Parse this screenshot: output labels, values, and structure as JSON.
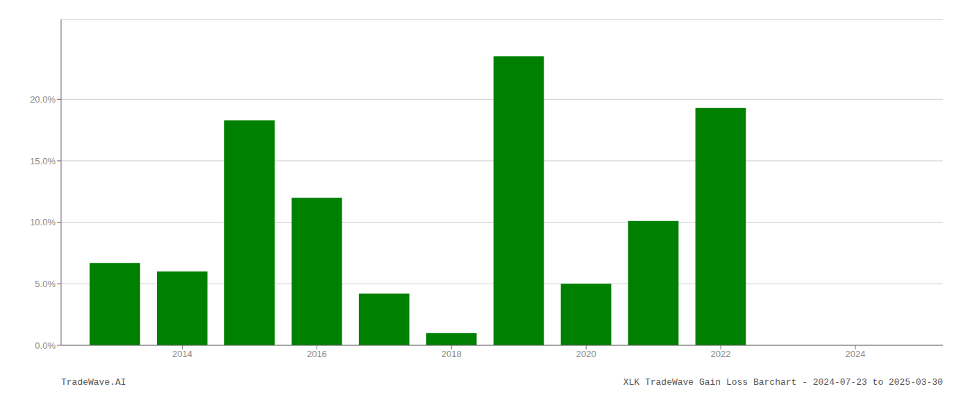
{
  "chart_data": {
    "type": "bar",
    "x": [
      2013,
      2014,
      2015,
      2016,
      2017,
      2018,
      2019,
      2020,
      2021,
      2022,
      2023
    ],
    "values": [
      0.067,
      0.06,
      0.183,
      0.12,
      0.042,
      0.01,
      0.235,
      0.05,
      0.101,
      0.193,
      0.0
    ],
    "color": "#008000",
    "xlim": [
      2012.2,
      2025.3
    ],
    "xticks": [
      2014,
      2016,
      2018,
      2020,
      2022,
      2024
    ],
    "ylim": [
      0,
      0.265
    ],
    "yticks": [
      {
        "value": 0.0,
        "label": "0.0%"
      },
      {
        "value": 0.05,
        "label": "5.0%"
      },
      {
        "value": 0.1,
        "label": "10.0%"
      },
      {
        "value": 0.15,
        "label": "15.0%"
      },
      {
        "value": 0.2,
        "label": "20.0%"
      }
    ],
    "grid": true,
    "annotations": [
      "TradeWave.AI",
      "XLK TradeWave Gain Loss Barchart - 2024-07-23 to 2025-03-30"
    ]
  }
}
